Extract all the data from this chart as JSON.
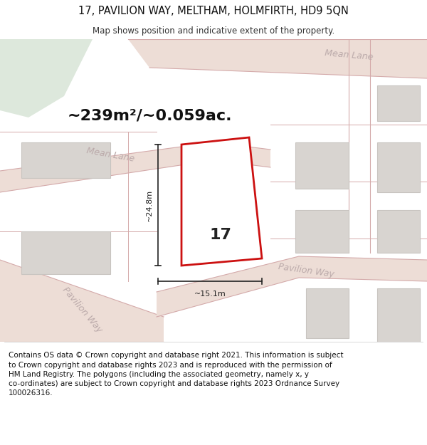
{
  "title_line1": "17, PAVILION WAY, MELTHAM, HOLMFIRTH, HD9 5QN",
  "title_line2": "Map shows position and indicative extent of the property.",
  "area_text": "~239m²/~0.059ac.",
  "number_label": "17",
  "dim_vertical": "~24.8m",
  "dim_horizontal": "~15.1m",
  "road_label_top_right": "Mean Lane",
  "road_label_mid_left": "Mean Lane",
  "road_label_bottom_right": "Pavilion Way",
  "road_label_bottom_left": "Pavilion Way",
  "footer_text": "Contains OS data © Crown copyright and database right 2021. This information is subject to Crown copyright and database rights 2023 and is reproduced with the permission of HM Land Registry. The polygons (including the associated geometry, namely x, y co-ordinates) are subject to Crown copyright and database rights 2023 Ordnance Survey 100026316.",
  "map_bg": "#f2eeea",
  "road_fill": "#edddd6",
  "road_line": "#d4aaaa",
  "plot_fill": "#ffffff",
  "plot_border": "#cc1111",
  "building_fill": "#d8d4d0",
  "building_border": "#c8c4c0",
  "green_fill": "#dde8dc",
  "dim_color": "#222222",
  "road_text_color": "#bbaaaa",
  "title_color": "#111111",
  "subtitle_color": "#333333",
  "footer_color": "#111111"
}
